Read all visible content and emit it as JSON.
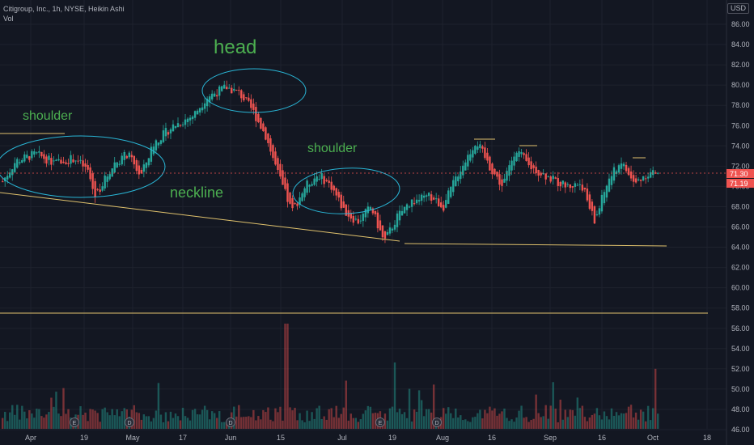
{
  "header": {
    "symbol_line": "Citigroup, Inc., 1h, NYSE, Heikin Ashi",
    "vol_label": "Vol",
    "currency": "USD"
  },
  "colors": {
    "background": "#131722",
    "up": "#26a69a",
    "down": "#ef5350",
    "annotation_text": "#4caf50",
    "ellipse": "#29b6d6",
    "trendline": "#e0c26d",
    "axis_text": "#b2b5be",
    "price_dotted": "#ef5350"
  },
  "annotations": {
    "head": "head",
    "shoulder_left": "shoulder",
    "shoulder_right": "shoulder",
    "neckline": "neckline"
  },
  "chart_data": {
    "type": "candlestick",
    "yaxis_ticks": [
      "86.00",
      "84.00",
      "82.00",
      "80.00",
      "78.00",
      "76.00",
      "74.00",
      "72.00",
      "70.00",
      "68.00",
      "66.00",
      "64.00",
      "62.00",
      "60.00",
      "58.00",
      "56.00",
      "54.00",
      "52.00",
      "50.00",
      "48.00",
      "46.00"
    ],
    "xaxis_ticks": [
      "Apr",
      "19",
      "May",
      "17",
      "Jun",
      "15",
      "Jul",
      "19",
      "Aug",
      "16",
      "Sep",
      "16",
      "Oct",
      "18"
    ],
    "price_labels": {
      "last": "71.30",
      "ha_close": "71.19"
    },
    "price_path": [
      {
        "t": 0,
        "p": 70.5
      },
      {
        "t": 0.02,
        "p": 72.5
      },
      {
        "t": 0.05,
        "p": 73.2
      },
      {
        "t": 0.08,
        "p": 72.3
      },
      {
        "t": 0.11,
        "p": 72.8
      },
      {
        "t": 0.13,
        "p": 71.5
      },
      {
        "t": 0.14,
        "p": 69.0
      },
      {
        "t": 0.17,
        "p": 72.3
      },
      {
        "t": 0.19,
        "p": 73.2
      },
      {
        "t": 0.21,
        "p": 71.0
      },
      {
        "t": 0.23,
        "p": 74.3
      },
      {
        "t": 0.26,
        "p": 76.0
      },
      {
        "t": 0.29,
        "p": 77.0
      },
      {
        "t": 0.31,
        "p": 78.8
      },
      {
        "t": 0.34,
        "p": 79.8
      },
      {
        "t": 0.36,
        "p": 79.2
      },
      {
        "t": 0.38,
        "p": 77.5
      },
      {
        "t": 0.4,
        "p": 75.0
      },
      {
        "t": 0.42,
        "p": 71.0
      },
      {
        "t": 0.44,
        "p": 67.5
      },
      {
        "t": 0.46,
        "p": 70.0
      },
      {
        "t": 0.48,
        "p": 71.2
      },
      {
        "t": 0.5,
        "p": 70.0
      },
      {
        "t": 0.52,
        "p": 67.5
      },
      {
        "t": 0.54,
        "p": 66.5
      },
      {
        "t": 0.56,
        "p": 68.0
      },
      {
        "t": 0.58,
        "p": 64.5
      },
      {
        "t": 0.6,
        "p": 67.0
      },
      {
        "t": 0.62,
        "p": 68.5
      },
      {
        "t": 0.65,
        "p": 69.0
      },
      {
        "t": 0.67,
        "p": 68.0
      },
      {
        "t": 0.69,
        "p": 71.0
      },
      {
        "t": 0.72,
        "p": 74.5
      },
      {
        "t": 0.74,
        "p": 72.0
      },
      {
        "t": 0.76,
        "p": 70.0
      },
      {
        "t": 0.78,
        "p": 73.8
      },
      {
        "t": 0.8,
        "p": 72.0
      },
      {
        "t": 0.82,
        "p": 71.3
      },
      {
        "t": 0.84,
        "p": 70.5
      },
      {
        "t": 0.86,
        "p": 70.0
      },
      {
        "t": 0.88,
        "p": 70.3
      },
      {
        "t": 0.9,
        "p": 66.5
      },
      {
        "t": 0.92,
        "p": 70.5
      },
      {
        "t": 0.94,
        "p": 72.5
      },
      {
        "t": 0.96,
        "p": 70.2
      },
      {
        "t": 0.98,
        "p": 71.3
      }
    ]
  }
}
